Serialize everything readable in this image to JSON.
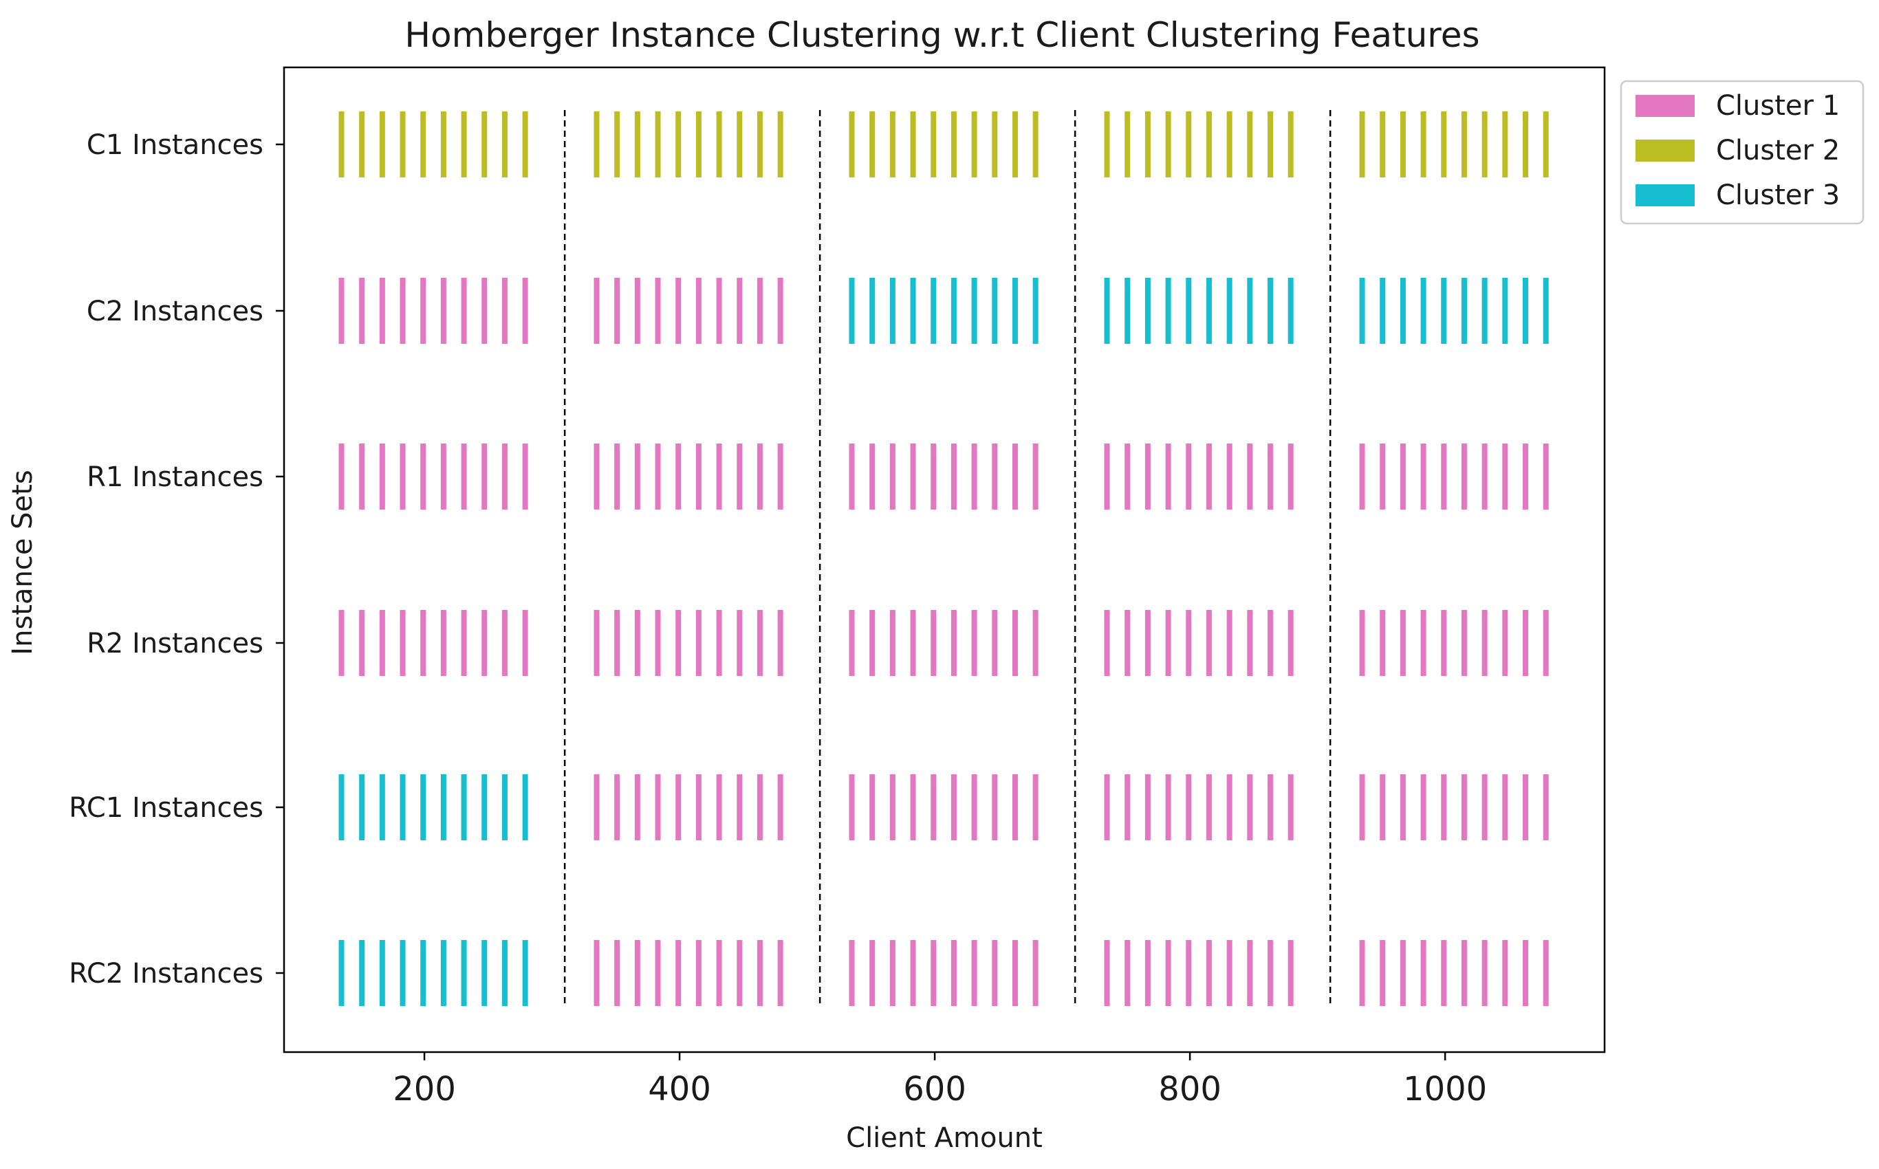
{
  "chart_data": {
    "type": "event-strip",
    "title": "Homberger Instance Clustering w.r.t Client Clustering Features",
    "xlabel": "Client Amount",
    "ylabel": "Instance Sets",
    "xlim": [
      90,
      1125
    ],
    "x_ticks": [
      200,
      400,
      600,
      800,
      1000
    ],
    "grid": false,
    "legend_position": "top-right-outside",
    "instance_sets": [
      "C1 Instances",
      "C2 Instances",
      "R1 Instances",
      "R2 Instances",
      "RC1 Instances",
      "RC2 Instances"
    ],
    "client_amounts": [
      200,
      400,
      600,
      800,
      1000
    ],
    "instances_per_group": 10,
    "instance_x_offsets": [
      -65,
      -49,
      -33,
      -17,
      -1,
      15,
      31,
      47,
      63,
      79
    ],
    "group_separators_x": [
      310,
      510,
      710,
      910
    ],
    "clusters": [
      {
        "name": "Cluster 1",
        "color": "#e377c2"
      },
      {
        "name": "Cluster 2",
        "color": "#bcbd22"
      },
      {
        "name": "Cluster 3",
        "color": "#17becf"
      }
    ],
    "assignments": [
      {
        "set": "C1 Instances",
        "clusters_by_client_amount": [
          2,
          2,
          2,
          2,
          2
        ]
      },
      {
        "set": "C2 Instances",
        "clusters_by_client_amount": [
          1,
          1,
          3,
          3,
          3
        ]
      },
      {
        "set": "R1 Instances",
        "clusters_by_client_amount": [
          1,
          1,
          1,
          1,
          1
        ]
      },
      {
        "set": "R2 Instances",
        "clusters_by_client_amount": [
          1,
          1,
          1,
          1,
          1
        ]
      },
      {
        "set": "RC1 Instances",
        "clusters_by_client_amount": [
          3,
          1,
          1,
          1,
          1
        ]
      },
      {
        "set": "RC2 Instances",
        "clusters_by_client_amount": [
          3,
          1,
          1,
          1,
          1
        ]
      }
    ]
  }
}
